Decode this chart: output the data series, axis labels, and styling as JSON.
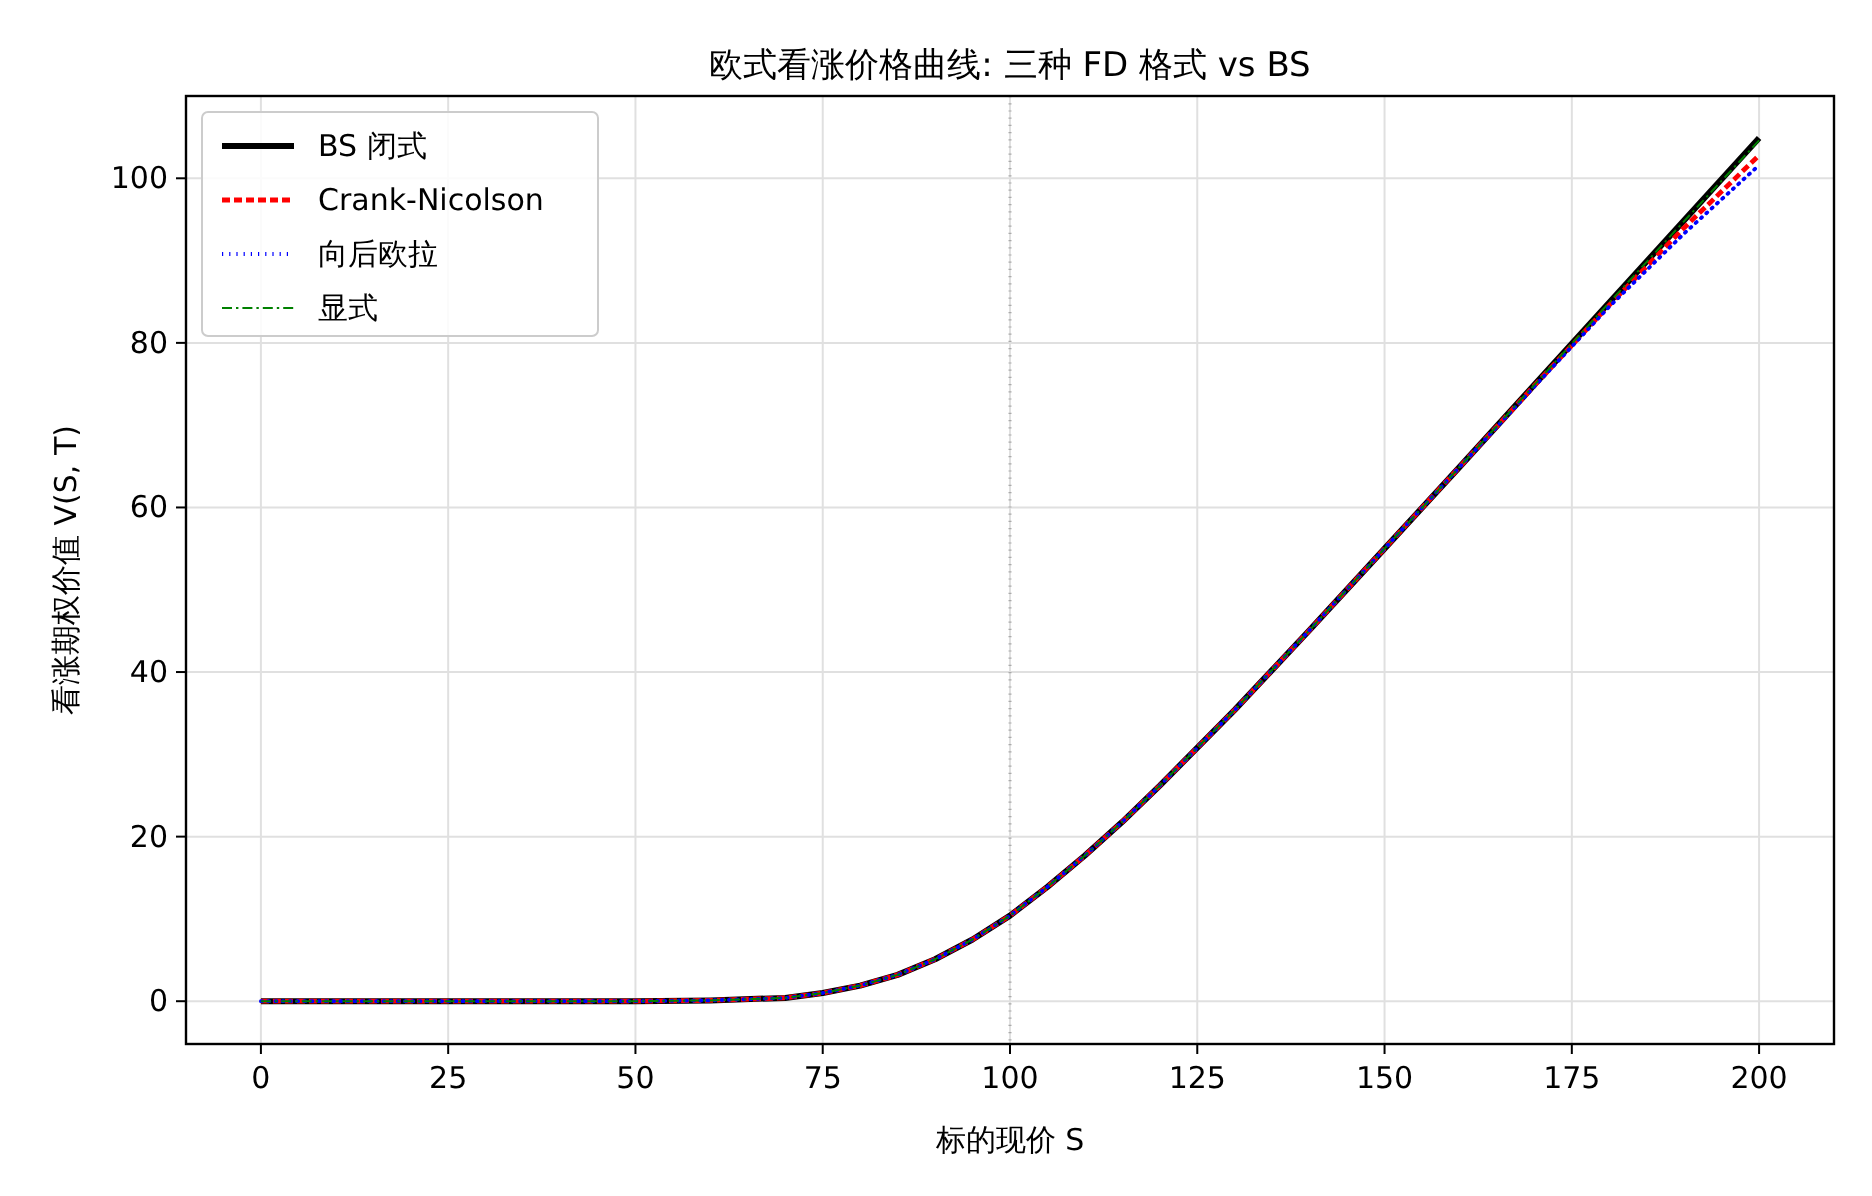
{
  "chart_data": {
    "type": "line",
    "title": "欧式看涨价格曲线: 三种 FD 格式 vs BS",
    "xlabel": "标的现价 S",
    "ylabel": "看涨期权价值 V(S, T)",
    "x": [
      0,
      10,
      20,
      30,
      40,
      50,
      60,
      70,
      75,
      80,
      85,
      90,
      95,
      100,
      105,
      110,
      115,
      120,
      130,
      140,
      150,
      160,
      170,
      180,
      190,
      200
    ],
    "series": [
      {
        "name": "BS 闭式",
        "color": "#000000",
        "line_style": "solid",
        "values": [
          0,
          0,
          0,
          0,
          0,
          0,
          0.1,
          0.4,
          1,
          1.9,
          3.2,
          5.1,
          7.5,
          10.4,
          13.9,
          17.7,
          21.8,
          26.2,
          35.4,
          45.1,
          55,
          64.9,
          74.9,
          84.9,
          94.9,
          104.9
        ]
      },
      {
        "name": "Crank-Nicolson",
        "color": "#ff0000",
        "line_style": "dashed",
        "values": [
          0,
          0,
          0,
          0,
          0,
          0,
          0.1,
          0.4,
          1,
          1.9,
          3.2,
          5.1,
          7.5,
          10.4,
          13.9,
          17.7,
          21.8,
          26.2,
          35.4,
          45.1,
          55,
          64.9,
          74.8,
          84.6,
          94,
          102.8
        ]
      },
      {
        "name": "向后欧拉",
        "color": "#0000ff",
        "line_style": "dotted",
        "values": [
          0,
          0,
          0,
          0,
          0,
          0,
          0.1,
          0.4,
          1,
          1.9,
          3.2,
          5.1,
          7.5,
          10.4,
          13.9,
          17.7,
          21.8,
          26.2,
          35.4,
          45.1,
          55,
          64.9,
          74.7,
          84.4,
          93.3,
          101.6
        ]
      },
      {
        "name": "显式",
        "color": "#008000",
        "line_style": "dashdot",
        "values": [
          0,
          0,
          0,
          0,
          0,
          0,
          0.1,
          0.4,
          1,
          1.9,
          3.2,
          5.1,
          7.5,
          10.4,
          13.9,
          17.7,
          21.8,
          26.2,
          35.4,
          45.1,
          55,
          64.9,
          74.9,
          84.9,
          94.8,
          104.6
        ]
      }
    ],
    "xlim": [
      -10,
      210
    ],
    "ylim": [
      -5.2,
      110
    ],
    "xticks": [
      0,
      25,
      50,
      75,
      100,
      125,
      150,
      175,
      200
    ],
    "yticks": [
      0,
      20,
      40,
      60,
      80,
      100
    ],
    "grid": true,
    "legend": "top left",
    "ref_lines": [
      {
        "axis": "x",
        "value": 100,
        "color": "#aaaaaa",
        "line_style": "dotted"
      }
    ]
  }
}
